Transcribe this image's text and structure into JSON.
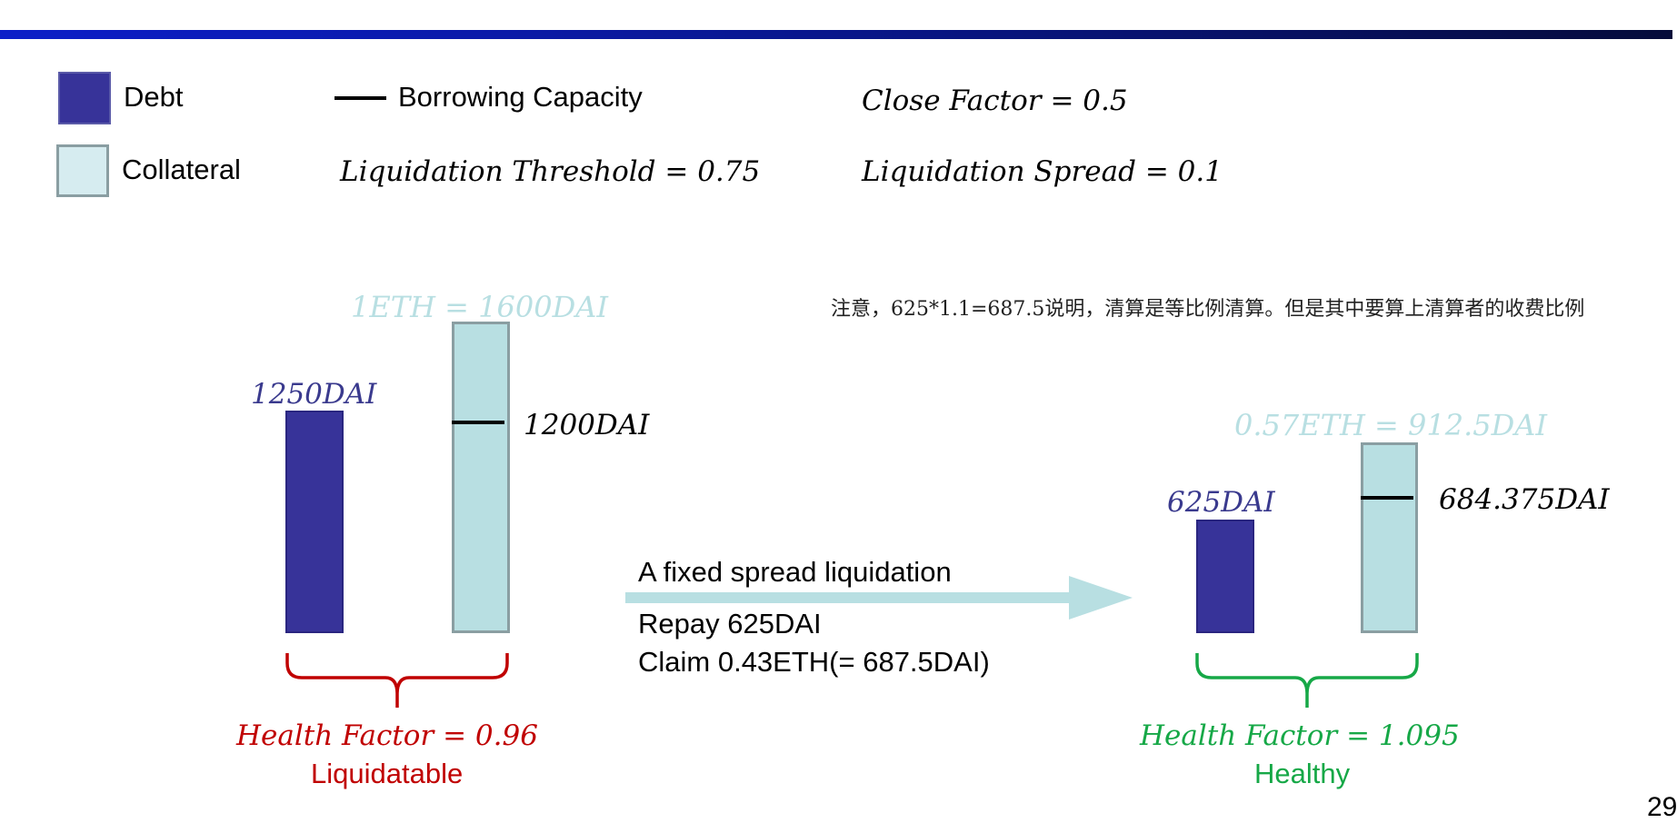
{
  "legend": {
    "debt_label": "Debt",
    "collateral_label": "Collateral",
    "capacity_label": "Borrowing Capacity"
  },
  "params": {
    "close_factor": "Close Factor = 0.5",
    "liquidation_threshold": "Liquidation Threshold = 0.75",
    "liquidation_spread": "Liquidation Spread = 0.1"
  },
  "note": "注意，625*1.1=687.5说明，清算是等比例清算。但是其中要算上清算者的收费比例",
  "before": {
    "price_label": "1ETH = 1600DAI",
    "debt_label": "1250DAI",
    "capacity_label": "1200DAI",
    "health_factor": "Health Factor = 0.96",
    "status": "Liquidatable"
  },
  "action": {
    "title": "A fixed spread liquidation",
    "repay": "Repay 625DAI",
    "claim": "Claim 0.43ETH(= 687.5DAI)"
  },
  "after": {
    "price_label": "0.57ETH = 912.5DAI",
    "debt_label": "625DAI",
    "capacity_label": "684.375DAI",
    "health_factor": "Health Factor = 1.095",
    "status": "Healthy"
  },
  "page_number": "29",
  "colors": {
    "debt": "#373399",
    "collateral": "#b8dfe2",
    "liquidatable": "#c00000",
    "healthy": "#16a847"
  }
}
